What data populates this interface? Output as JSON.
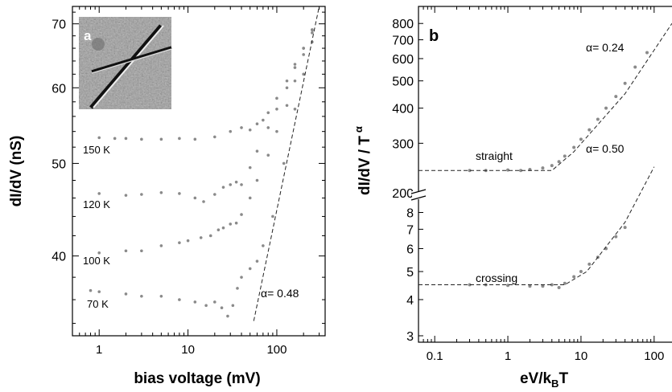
{
  "chart_data": [
    {
      "panel": "a",
      "type": "scatter",
      "xscale": "log",
      "yscale": "log",
      "xlabel": "bias voltage (mV)",
      "ylabel": "dI/dV (nS)",
      "xlim": [
        0.5,
        350
      ],
      "ylim": [
        33,
        73
      ],
      "xticks": [
        1,
        10,
        100
      ],
      "xtick_labels": [
        "1",
        "10",
        "100"
      ],
      "yticks": [
        40,
        50,
        60,
        70
      ],
      "ytick_labels": [
        "40",
        "50",
        "60",
        "70"
      ],
      "inset": {
        "label": "a",
        "kind": "AFM image of crossed nanotubes"
      },
      "series": [
        {
          "name": "150 K",
          "points": [
            [
              1,
              53.2
            ],
            [
              1.5,
              53.1
            ],
            [
              2,
              53.1
            ],
            [
              3,
              53.0
            ],
            [
              5,
              53.0
            ],
            [
              8,
              53.1
            ],
            [
              12,
              53.0
            ],
            [
              20,
              53.3
            ],
            [
              30,
              54.0
            ],
            [
              40,
              54.5
            ],
            [
              50,
              54.2
            ],
            [
              60,
              55.0
            ],
            [
              70,
              55.5
            ],
            [
              80,
              56.5
            ],
            [
              100,
              58.5
            ],
            [
              130,
              61
            ],
            [
              160,
              63.5
            ],
            [
              200,
              66
            ],
            [
              250,
              69
            ]
          ]
        },
        {
          "name": "120 K",
          "points": [
            [
              1,
              46.5
            ],
            [
              2,
              46.3
            ],
            [
              3,
              46.4
            ],
            [
              5,
              46.6
            ],
            [
              8,
              46.5
            ],
            [
              12,
              46.0
            ],
            [
              15,
              45.6
            ],
            [
              20,
              46.4
            ],
            [
              25,
              47.2
            ],
            [
              30,
              47.5
            ],
            [
              35,
              47.8
            ],
            [
              40,
              47.5
            ],
            [
              50,
              49.5
            ],
            [
              60,
              51.5
            ],
            [
              80,
              54.5
            ],
            [
              100,
              57
            ],
            [
              130,
              60
            ],
            [
              160,
              63
            ],
            [
              200,
              66
            ],
            [
              250,
              69
            ]
          ]
        },
        {
          "name": "100 K",
          "points": [
            [
              1,
              40.3
            ],
            [
              2,
              40.5
            ],
            [
              3,
              40.5
            ],
            [
              5,
              41.0
            ],
            [
              8,
              41.3
            ],
            [
              10,
              41.5
            ],
            [
              14,
              41.8
            ],
            [
              18,
              42.0
            ],
            [
              22,
              42.6
            ],
            [
              25,
              42.8
            ],
            [
              30,
              43.2
            ],
            [
              35,
              43.3
            ],
            [
              40,
              44.2
            ],
            [
              50,
              46.0
            ],
            [
              60,
              48.0
            ],
            [
              80,
              51.0
            ],
            [
              100,
              54.0
            ],
            [
              130,
              57.5
            ],
            [
              160,
              61
            ],
            [
              200,
              65
            ],
            [
              250,
              68.5
            ]
          ]
        },
        {
          "name": "70 K",
          "points": [
            [
              0.8,
              36.8
            ],
            [
              1,
              36.7
            ],
            [
              2,
              36.5
            ],
            [
              3,
              36.3
            ],
            [
              5,
              36.3
            ],
            [
              8,
              36.0
            ],
            [
              12,
              35.8
            ],
            [
              16,
              35.5
            ],
            [
              20,
              35.8
            ],
            [
              24,
              35.3
            ],
            [
              28,
              34.6
            ],
            [
              32,
              35.5
            ],
            [
              36,
              37.0
            ],
            [
              40,
              38.0
            ],
            [
              50,
              38.8
            ],
            [
              60,
              39.5
            ],
            [
              70,
              41.0
            ],
            [
              90,
              44.0
            ],
            [
              120,
              50.0
            ],
            [
              160,
              57.0
            ],
            [
              200,
              62.0
            ],
            [
              250,
              67.0
            ]
          ]
        }
      ],
      "fit_line": {
        "label": "α= 0.48",
        "points": [
          [
            55,
            34.2
          ],
          [
            300,
            73.0
          ]
        ]
      },
      "annotations": [
        "150 K",
        "120 K",
        "100 K",
        "70 K",
        "α= 0.48"
      ]
    },
    {
      "panel": "b",
      "type": "scatter",
      "xscale": "log",
      "yscale": "log (broken axis)",
      "xlabel": "eV/kBT",
      "ylabel": "dI/dV / T α",
      "xlim": [
        0.06,
        180
      ],
      "xticks": [
        0.1,
        1,
        10,
        100
      ],
      "xtick_labels": [
        "0.1",
        "1",
        "10",
        "100"
      ],
      "upper_ylim": [
        200,
        850
      ],
      "upper_yticks": [
        200,
        300,
        400,
        500,
        600,
        700,
        800
      ],
      "upper_ytick_labels": [
        "200",
        "300",
        "400",
        "500",
        "600",
        "700",
        "800"
      ],
      "lower_ylim": [
        3,
        8.5
      ],
      "lower_yticks": [
        3,
        4,
        5,
        6,
        7,
        8
      ],
      "lower_ytick_labels": [
        "3",
        "4",
        "5",
        "6",
        "7",
        "8"
      ],
      "series": [
        {
          "name": "straight",
          "axis": "upper",
          "points": [
            [
              0.3,
              240
            ],
            [
              0.5,
              240
            ],
            [
              1,
              241
            ],
            [
              1.5,
              240
            ],
            [
              2,
              242
            ],
            [
              3,
              245
            ],
            [
              4,
              250
            ],
            [
              5,
              258
            ],
            [
              6,
              270
            ],
            [
              8,
              290
            ],
            [
              10,
              310
            ],
            [
              13,
              335
            ],
            [
              17,
              365
            ],
            [
              22,
              400
            ],
            [
              30,
              440
            ],
            [
              40,
              490
            ],
            [
              55,
              560
            ],
            [
              80,
              630
            ]
          ]
        },
        {
          "name": "crossing",
          "axis": "lower",
          "points": [
            [
              0.3,
              4.5
            ],
            [
              0.5,
              4.5
            ],
            [
              1,
              4.48
            ],
            [
              2,
              4.45
            ],
            [
              3,
              4.45
            ],
            [
              4,
              4.5
            ],
            [
              5,
              4.4
            ],
            [
              6,
              4.55
            ],
            [
              8,
              4.8
            ],
            [
              10,
              5.0
            ],
            [
              13,
              5.3
            ],
            [
              17,
              5.6
            ],
            [
              22,
              6.0
            ],
            [
              30,
              6.6
            ],
            [
              40,
              7.1
            ]
          ]
        }
      ],
      "fit_lines": [
        {
          "label": "α= 0.24",
          "axis": "upper",
          "points": [
            [
              0.06,
              240
            ],
            [
              4,
              240
            ],
            [
              8,
              280
            ],
            [
              40,
              450
            ],
            [
              175,
              800
            ]
          ]
        },
        {
          "label": "α= 0.50",
          "axis": "lower",
          "points": [
            [
              0.06,
              4.5
            ],
            [
              6,
              4.5
            ],
            [
              12,
              5.0
            ],
            [
              40,
              7.4
            ],
            [
              100,
              11.5
            ]
          ]
        }
      ],
      "annotations": [
        "straight",
        "crossing",
        "α= 0.24",
        "α= 0.50"
      ]
    }
  ],
  "labels": {
    "a_inset_letter": "a",
    "a_xlabel": "bias voltage (mV)",
    "a_ylabel": "dI/dV (nS)",
    "a_temp_150": "150 K",
    "a_temp_120": "120 K",
    "a_temp_100": "100 K",
    "a_temp_70": "70 K",
    "a_alpha": "α= 0.48",
    "b_letter": "b",
    "b_xlabel_main": "eV/k",
    "b_xlabel_sub": "B",
    "b_xlabel_tail": "T",
    "b_ylabel_main": "dI/dV / T",
    "b_ylabel_sup": "α",
    "b_straight": "straight",
    "b_crossing": "crossing",
    "b_alpha_top": "α= 0.24",
    "b_alpha_bot": "α= 0.50"
  },
  "colors": {
    "points": "#8a8a8a",
    "axis": "#000000",
    "fit": "#222222"
  }
}
